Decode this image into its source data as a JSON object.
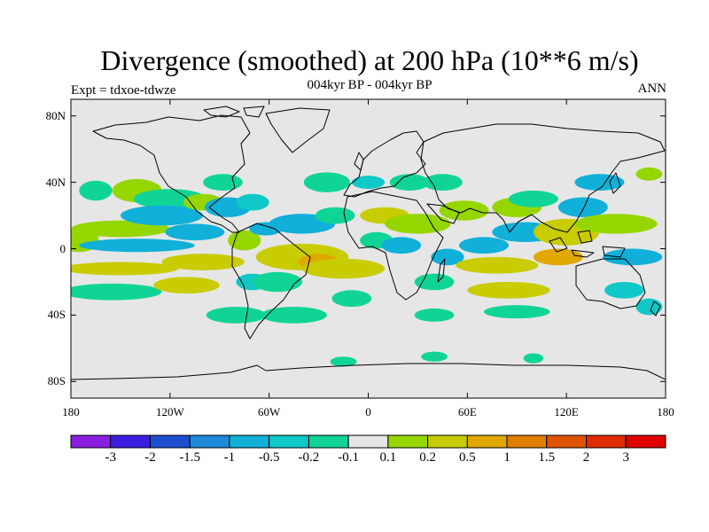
{
  "title": "Divergence (smoothed) at 200 hPa (10**6 m/s)",
  "subtitle": "004kyr BP - 004kyr BP",
  "left_string": "Expt = tdxoe-tdwze",
  "right_string": "ANN",
  "map": {
    "projection": "cylindrical-equidistant",
    "background_color": "#e6e6e6",
    "coastline_color": "#000000",
    "y_ticks": [
      {
        "label": "80N",
        "lat": 80
      },
      {
        "label": "40N",
        "lat": 40
      },
      {
        "label": "0",
        "lat": 0
      },
      {
        "label": "40S",
        "lat": -40
      },
      {
        "label": "80S",
        "lat": -80
      }
    ],
    "x_ticks": [
      {
        "label": "180",
        "lon": -180
      },
      {
        "label": "120W",
        "lon": -120
      },
      {
        "label": "60W",
        "lon": -60
      },
      {
        "label": "0",
        "lon": 0
      },
      {
        "label": "60E",
        "lon": 60
      },
      {
        "label": "120E",
        "lon": 120
      },
      {
        "label": "180",
        "lon": 180
      }
    ]
  },
  "colorbar": {
    "labels": [
      "-3",
      "-2",
      "-1.5",
      "-1",
      "-0.5",
      "-0.2",
      "-0.1",
      "0.1",
      "0.2",
      "0.5",
      "1",
      "1.5",
      "2",
      "3"
    ],
    "colors": [
      "#8a1ee0",
      "#3a1ee0",
      "#1e4ed0",
      "#1e88d8",
      "#10b0d8",
      "#10c8c8",
      "#10d496",
      "#e6e6e6",
      "#96d600",
      "#c8cc00",
      "#e0a800",
      "#e07e00",
      "#e05400",
      "#e02a00",
      "#e00000"
    ]
  },
  "field": {
    "blobs": [
      {
        "lon": -175,
        "lat": 5,
        "rx": 12,
        "ry": 7,
        "level": 8
      },
      {
        "lon": -150,
        "lat": 12,
        "rx": 30,
        "ry": 5,
        "level": 8
      },
      {
        "lon": -140,
        "lat": 2,
        "rx": 35,
        "ry": 4,
        "level": 4
      },
      {
        "lon": -150,
        "lat": -12,
        "rx": 35,
        "ry": 4,
        "level": 9
      },
      {
        "lon": -155,
        "lat": -26,
        "rx": 30,
        "ry": 5,
        "level": 6
      },
      {
        "lon": -140,
        "lat": 35,
        "rx": 15,
        "ry": 7,
        "level": 8
      },
      {
        "lon": -165,
        "lat": 35,
        "rx": 10,
        "ry": 6,
        "level": 6
      },
      {
        "lon": -120,
        "lat": 30,
        "rx": 22,
        "ry": 6,
        "level": 6
      },
      {
        "lon": -125,
        "lat": 20,
        "rx": 25,
        "ry": 6,
        "level": 4
      },
      {
        "lon": -105,
        "lat": 10,
        "rx": 18,
        "ry": 5,
        "level": 4
      },
      {
        "lon": -100,
        "lat": -8,
        "rx": 25,
        "ry": 5,
        "level": 9
      },
      {
        "lon": -110,
        "lat": -22,
        "rx": 20,
        "ry": 5,
        "level": 9
      },
      {
        "lon": -100,
        "lat": 28,
        "rx": 12,
        "ry": 5,
        "level": 8
      },
      {
        "lon": -85,
        "lat": 25,
        "rx": 14,
        "ry": 6,
        "level": 4
      },
      {
        "lon": -88,
        "lat": 40,
        "rx": 12,
        "ry": 5,
        "level": 6
      },
      {
        "lon": -70,
        "lat": 28,
        "rx": 10,
        "ry": 5,
        "level": 5
      },
      {
        "lon": -75,
        "lat": 5,
        "rx": 10,
        "ry": 6,
        "level": 8
      },
      {
        "lon": -62,
        "lat": 12,
        "rx": 10,
        "ry": 4,
        "level": 4
      },
      {
        "lon": -80,
        "lat": -40,
        "rx": 18,
        "ry": 5,
        "level": 6
      },
      {
        "lon": -70,
        "lat": -20,
        "rx": 10,
        "ry": 5,
        "level": 5
      },
      {
        "lon": -55,
        "lat": -20,
        "rx": 15,
        "ry": 6,
        "level": 6
      },
      {
        "lon": -40,
        "lat": -5,
        "rx": 28,
        "ry": 8,
        "level": 9
      },
      {
        "lon": -30,
        "lat": -8,
        "rx": 12,
        "ry": 5,
        "level": 10
      },
      {
        "lon": -15,
        "lat": -12,
        "rx": 25,
        "ry": 6,
        "level": 9
      },
      {
        "lon": -40,
        "lat": 15,
        "rx": 20,
        "ry": 6,
        "level": 4
      },
      {
        "lon": -25,
        "lat": 40,
        "rx": 14,
        "ry": 6,
        "level": 6
      },
      {
        "lon": -20,
        "lat": 20,
        "rx": 12,
        "ry": 5,
        "level": 6
      },
      {
        "lon": -45,
        "lat": -40,
        "rx": 20,
        "ry": 5,
        "level": 6
      },
      {
        "lon": -10,
        "lat": -30,
        "rx": 12,
        "ry": 5,
        "level": 6
      },
      {
        "lon": 0,
        "lat": 40,
        "rx": 10,
        "ry": 4,
        "level": 5
      },
      {
        "lon": 10,
        "lat": 20,
        "rx": 15,
        "ry": 5,
        "level": 9
      },
      {
        "lon": 5,
        "lat": 5,
        "rx": 10,
        "ry": 5,
        "level": 6
      },
      {
        "lon": 30,
        "lat": 15,
        "rx": 20,
        "ry": 6,
        "level": 8
      },
      {
        "lon": 20,
        "lat": 2,
        "rx": 12,
        "ry": 5,
        "level": 4
      },
      {
        "lon": 25,
        "lat": 40,
        "rx": 12,
        "ry": 5,
        "level": 6
      },
      {
        "lon": 45,
        "lat": 40,
        "rx": 12,
        "ry": 5,
        "level": 6
      },
      {
        "lon": 48,
        "lat": -5,
        "rx": 10,
        "ry": 5,
        "level": 4
      },
      {
        "lon": 40,
        "lat": -20,
        "rx": 12,
        "ry": 5,
        "level": 6
      },
      {
        "lon": 40,
        "lat": -40,
        "rx": 12,
        "ry": 4,
        "level": 6
      },
      {
        "lon": 58,
        "lat": 23,
        "rx": 15,
        "ry": 6,
        "level": 8
      },
      {
        "lon": 70,
        "lat": 2,
        "rx": 15,
        "ry": 5,
        "level": 4
      },
      {
        "lon": 78,
        "lat": -10,
        "rx": 25,
        "ry": 5,
        "level": 9
      },
      {
        "lon": 85,
        "lat": -25,
        "rx": 25,
        "ry": 5,
        "level": 9
      },
      {
        "lon": 90,
        "lat": -38,
        "rx": 20,
        "ry": 4,
        "level": 6
      },
      {
        "lon": 95,
        "lat": 10,
        "rx": 20,
        "ry": 6,
        "level": 4
      },
      {
        "lon": 90,
        "lat": 25,
        "rx": 15,
        "ry": 6,
        "level": 8
      },
      {
        "lon": 100,
        "lat": 30,
        "rx": 15,
        "ry": 5,
        "level": 6
      },
      {
        "lon": 120,
        "lat": 10,
        "rx": 20,
        "ry": 8,
        "level": 9
      },
      {
        "lon": 115,
        "lat": -5,
        "rx": 15,
        "ry": 5,
        "level": 10
      },
      {
        "lon": 130,
        "lat": 25,
        "rx": 15,
        "ry": 6,
        "level": 4
      },
      {
        "lon": 140,
        "lat": 40,
        "rx": 15,
        "ry": 5,
        "level": 4
      },
      {
        "lon": 150,
        "lat": 15,
        "rx": 25,
        "ry": 6,
        "level": 8
      },
      {
        "lon": 160,
        "lat": -5,
        "rx": 18,
        "ry": 5,
        "level": 4
      },
      {
        "lon": 155,
        "lat": -25,
        "rx": 12,
        "ry": 5,
        "level": 5
      },
      {
        "lon": 170,
        "lat": 45,
        "rx": 8,
        "ry": 4,
        "level": 8
      },
      {
        "lon": 170,
        "lat": -35,
        "rx": 8,
        "ry": 5,
        "level": 5
      },
      {
        "lon": -15,
        "lat": -68,
        "rx": 8,
        "ry": 3,
        "level": 6
      },
      {
        "lon": 40,
        "lat": -65,
        "rx": 8,
        "ry": 3,
        "level": 6
      },
      {
        "lon": 100,
        "lat": -66,
        "rx": 6,
        "ry": 3,
        "level": 6
      }
    ]
  }
}
